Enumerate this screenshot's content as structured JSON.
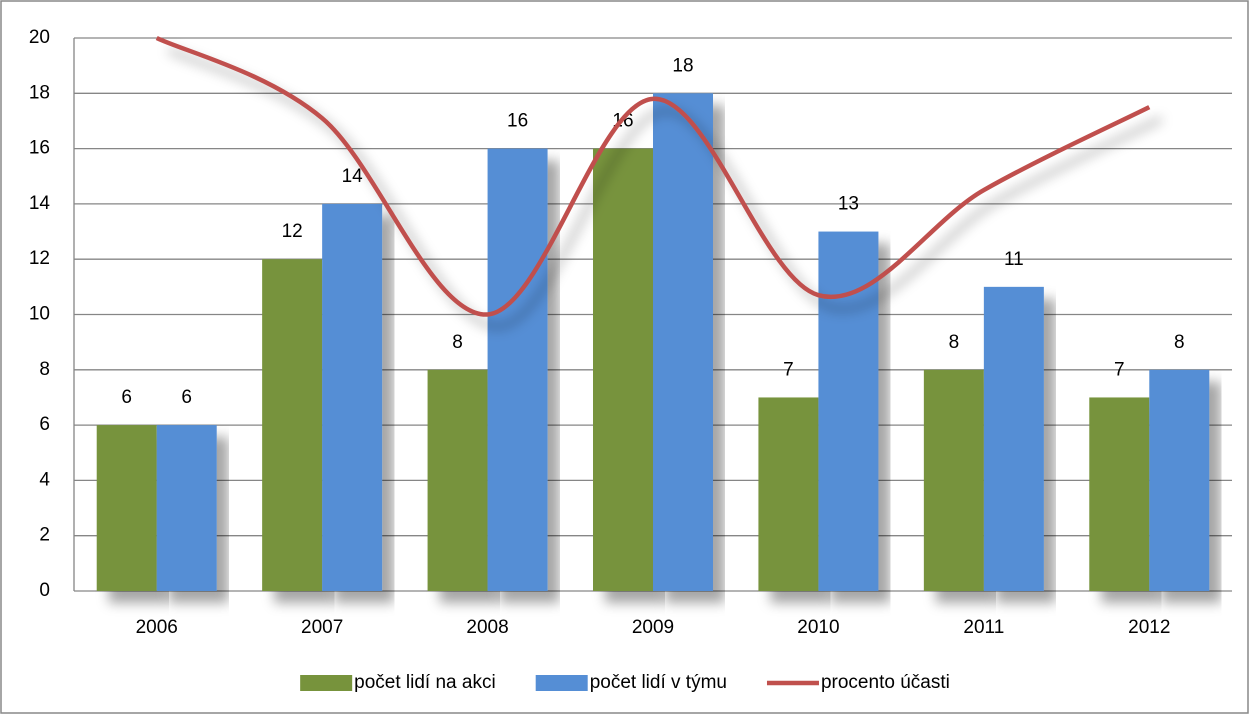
{
  "chart_data": {
    "type": "bar",
    "categories": [
      "2006",
      "2007",
      "2008",
      "2009",
      "2010",
      "2011",
      "2012"
    ],
    "series": [
      {
        "name": "počet lidí na akci",
        "color": "#77933c",
        "values": [
          6,
          12,
          8,
          16,
          7,
          8,
          7
        ],
        "data_labels": true
      },
      {
        "name": "počet lidí v týmu",
        "color": "#558ed5",
        "values": [
          6,
          14,
          16,
          18,
          13,
          11,
          8
        ],
        "data_labels": true
      },
      {
        "name": "procento účasti",
        "color": "#c0504d",
        "type": "line",
        "smooth": true,
        "values": [
          20,
          17.1,
          10,
          17.8,
          10.7,
          14.5,
          17.5
        ]
      }
    ],
    "ylim": [
      0,
      20
    ],
    "yticks": [
      0,
      2,
      4,
      6,
      8,
      10,
      12,
      14,
      16,
      18,
      20
    ],
    "grid": true,
    "legend": "bottom"
  }
}
